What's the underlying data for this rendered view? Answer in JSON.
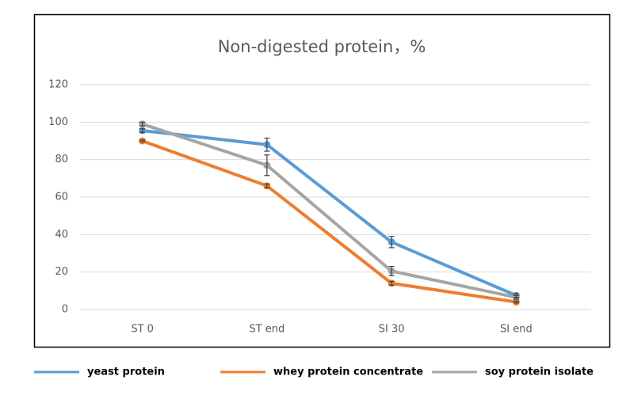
{
  "chart_data": {
    "type": "line",
    "title": "Non-digested protein，%",
    "categories": [
      "ST 0",
      "ST end",
      "SI 30",
      "SI end"
    ],
    "series": [
      {
        "name": "yeast protein",
        "color": "#5b9bd5",
        "values": [
          95.5,
          88,
          36,
          7.5
        ],
        "errors": [
          1,
          3.5,
          3,
          1
        ]
      },
      {
        "name": "whey protein concentrate",
        "color": "#ed7d31",
        "values": [
          90,
          66,
          14,
          4
        ],
        "errors": [
          0.5,
          1,
          1,
          0.5
        ]
      },
      {
        "name": "soy protein isolate",
        "color": "#a5a5a5",
        "values": [
          99,
          77,
          20.5,
          6.5
        ],
        "errors": [
          1,
          5.5,
          2.5,
          1
        ]
      }
    ],
    "ylim": [
      0,
      120
    ],
    "yticks": [
      0,
      20,
      40,
      60,
      80,
      100,
      120
    ],
    "grid": true
  }
}
